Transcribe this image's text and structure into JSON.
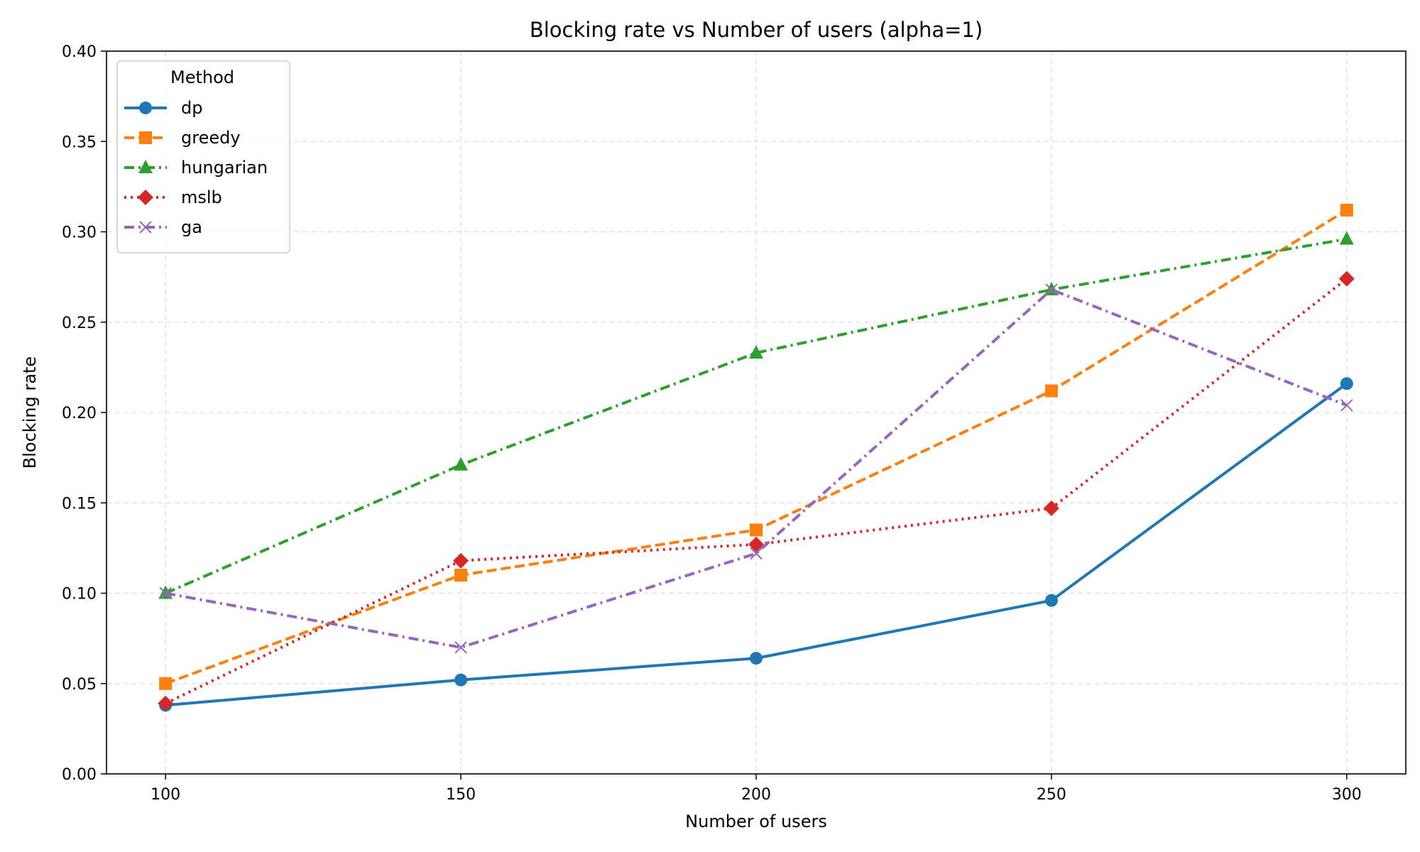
{
  "chart_data": {
    "type": "line",
    "title": "Blocking rate vs Number of users (alpha=1)",
    "xlabel": "Number of users",
    "ylabel": "Blocking rate",
    "x": [
      100,
      150,
      200,
      250,
      300
    ],
    "x_ticks": [
      "100",
      "150",
      "200",
      "250",
      "300"
    ],
    "xlim": [
      90,
      310
    ],
    "ylim": [
      0,
      0.4
    ],
    "y_ticks": [
      "0.00",
      "0.05",
      "0.10",
      "0.15",
      "0.20",
      "0.25",
      "0.30",
      "0.35",
      "0.40"
    ],
    "grid": true,
    "legend": {
      "title": "Method",
      "placement": "top-left"
    },
    "series": [
      {
        "name": "dp",
        "values": [
          0.038,
          0.052,
          0.064,
          0.096,
          0.216
        ],
        "color": "#1f77b4",
        "marker": "circle",
        "line_style": "solid"
      },
      {
        "name": "greedy",
        "values": [
          0.05,
          0.11,
          0.135,
          0.212,
          0.312
        ],
        "color": "#ff7f0e",
        "marker": "square",
        "line_style": "dashed"
      },
      {
        "name": "hungarian",
        "values": [
          0.1,
          0.171,
          0.233,
          0.268,
          0.296
        ],
        "color": "#2ca02c",
        "marker": "triangle",
        "line_style": "dashdot"
      },
      {
        "name": "mslb",
        "values": [
          0.039,
          0.118,
          0.127,
          0.147,
          0.274
        ],
        "color": "#d62728",
        "marker": "diamond",
        "line_style": "dotted"
      },
      {
        "name": "ga",
        "values": [
          0.1,
          0.07,
          0.122,
          0.268,
          0.204
        ],
        "color": "#9467bd",
        "marker": "x",
        "line_style": "dashdot"
      }
    ]
  }
}
